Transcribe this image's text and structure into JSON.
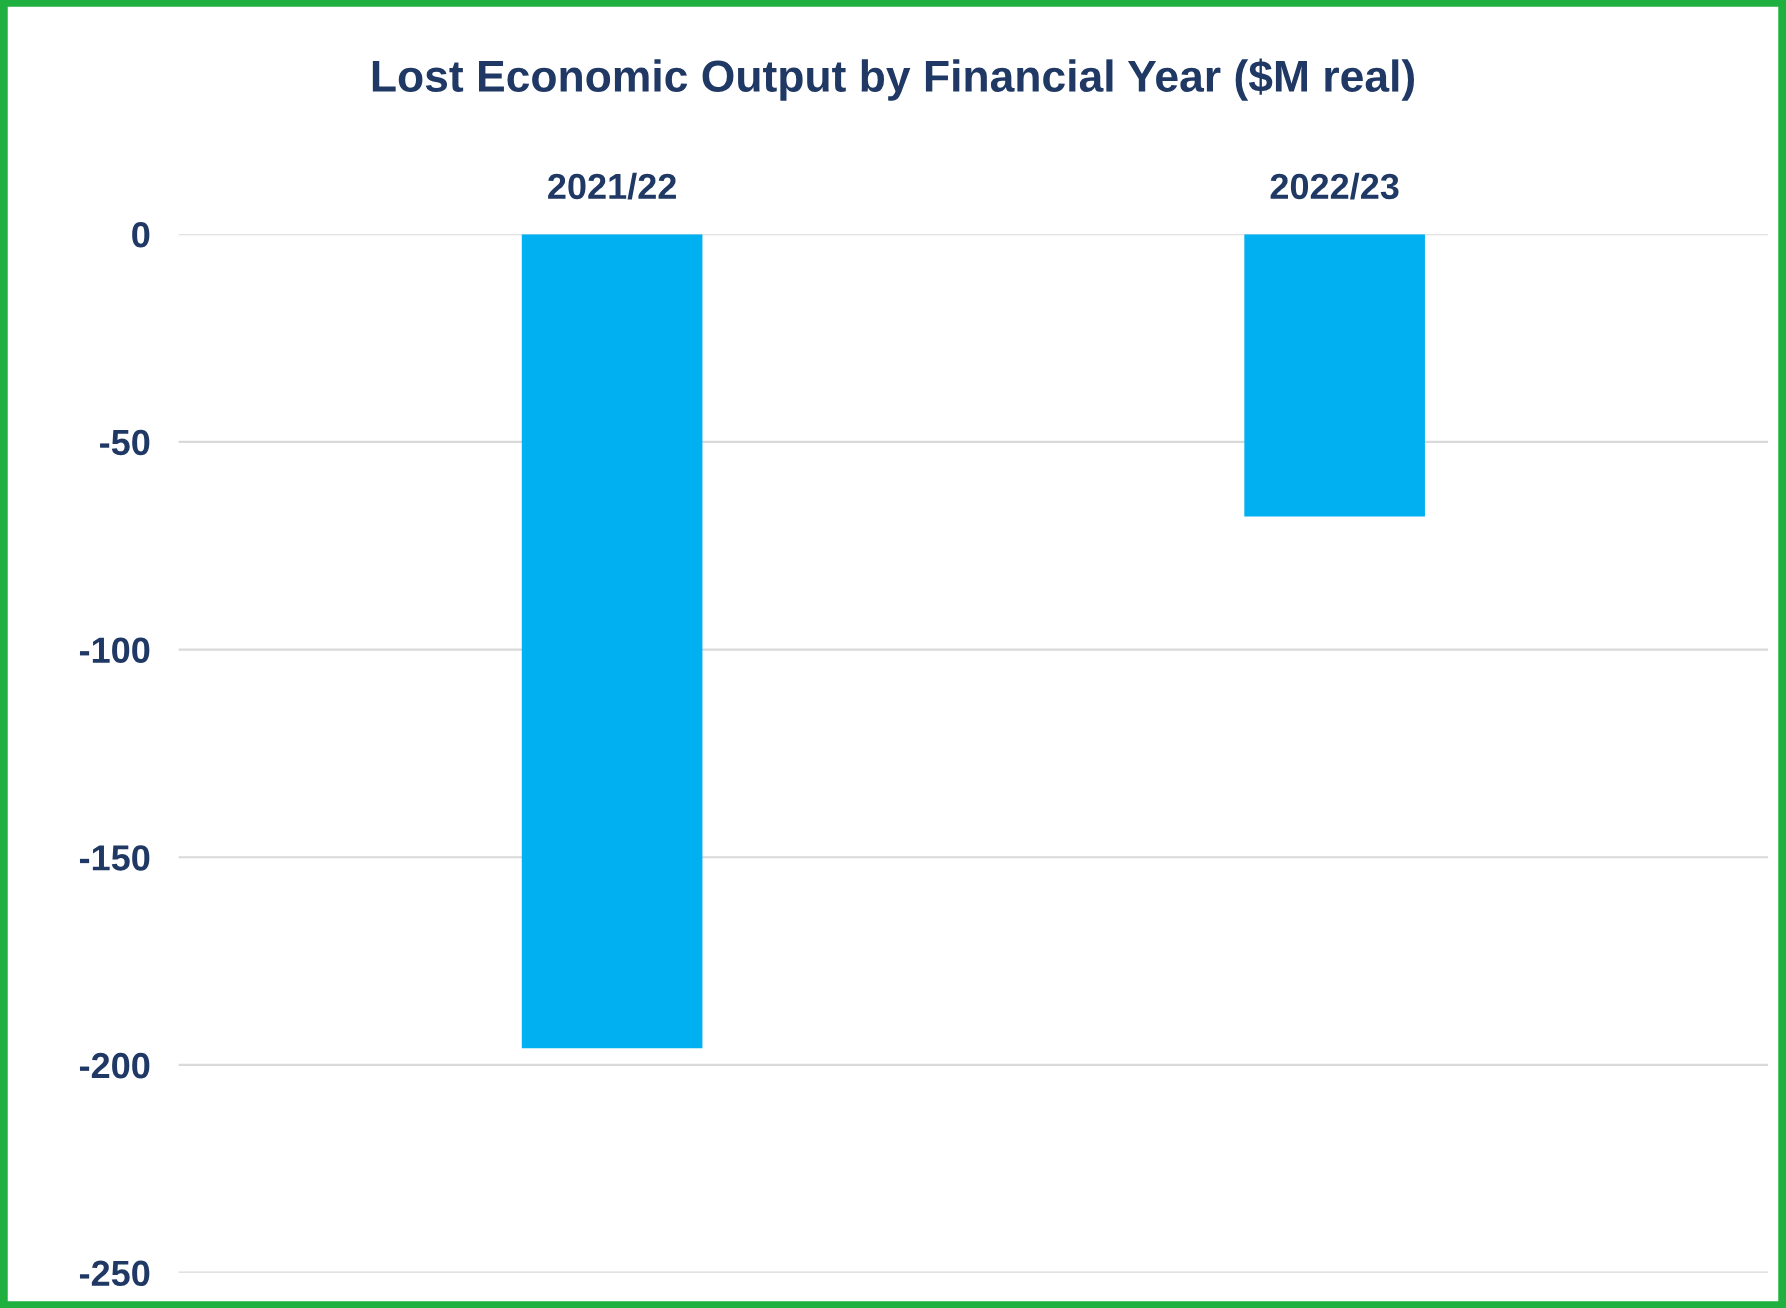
{
  "chart_data": {
    "type": "bar",
    "title": "Lost Economic Output by Financial Year ($M real)",
    "categories": [
      "2021/22",
      "2022/23"
    ],
    "series": [
      {
        "color": "#00b0f0",
        "values": [
          -196,
          -68
        ]
      }
    ],
    "ylim": [
      -250,
      0
    ],
    "yticks": [
      -250,
      -200,
      -150,
      -100,
      -50,
      0
    ],
    "grid": "y"
  }
}
